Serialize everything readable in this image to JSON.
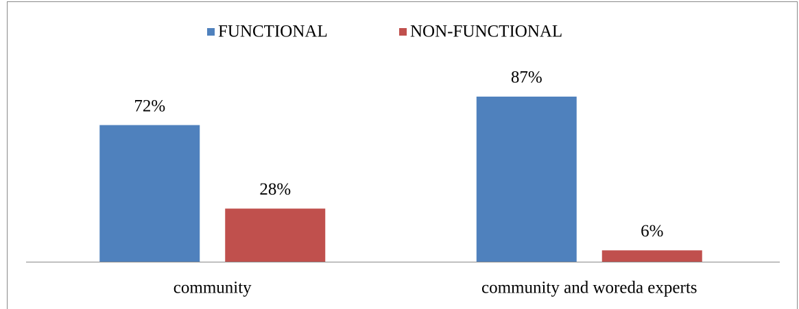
{
  "chart_data": {
    "type": "bar",
    "categories": [
      "community",
      "community and woreda experts"
    ],
    "series": [
      {
        "name": "FUNCTIONAL",
        "color": "#4f81bd",
        "values": [
          72,
          87
        ],
        "value_labels": [
          "72%",
          "87%"
        ]
      },
      {
        "name": "NON-FUNCTIONAL",
        "color": "#c0504d",
        "values": [
          28,
          6
        ],
        "value_labels": [
          "28%",
          "6%"
        ]
      }
    ],
    "legend": "top"
  }
}
